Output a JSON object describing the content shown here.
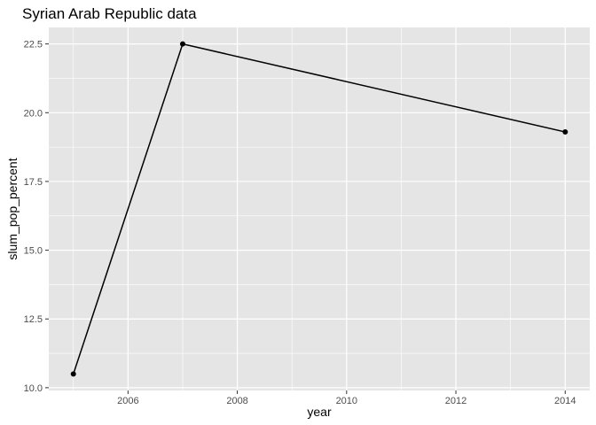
{
  "chart_data": {
    "type": "line",
    "title": "Syrian Arab Republic data",
    "xlabel": "year",
    "ylabel": "slum_pop_percent",
    "x": [
      2005,
      2007,
      2014
    ],
    "series": [
      {
        "values": [
          10.5,
          22.5,
          19.3
        ]
      }
    ],
    "xlim": [
      2004.55,
      2014.45
    ],
    "ylim": [
      9.9,
      23.1
    ],
    "x_ticks": [
      2006,
      2008,
      2010,
      2012,
      2014
    ],
    "x_tick_labels": [
      "2006",
      "2008",
      "2010",
      "2012",
      "2014"
    ],
    "y_ticks": [
      10.0,
      12.5,
      15.0,
      17.5,
      20.0,
      22.5
    ],
    "y_tick_labels": [
      "10.0",
      "12.5",
      "15.0",
      "17.5",
      "20.0",
      "22.5"
    ],
    "grid": true,
    "colors": {
      "panel": "#e5e5e5",
      "grid": "#ffffff",
      "line": "#000000",
      "points": "#000000"
    }
  }
}
